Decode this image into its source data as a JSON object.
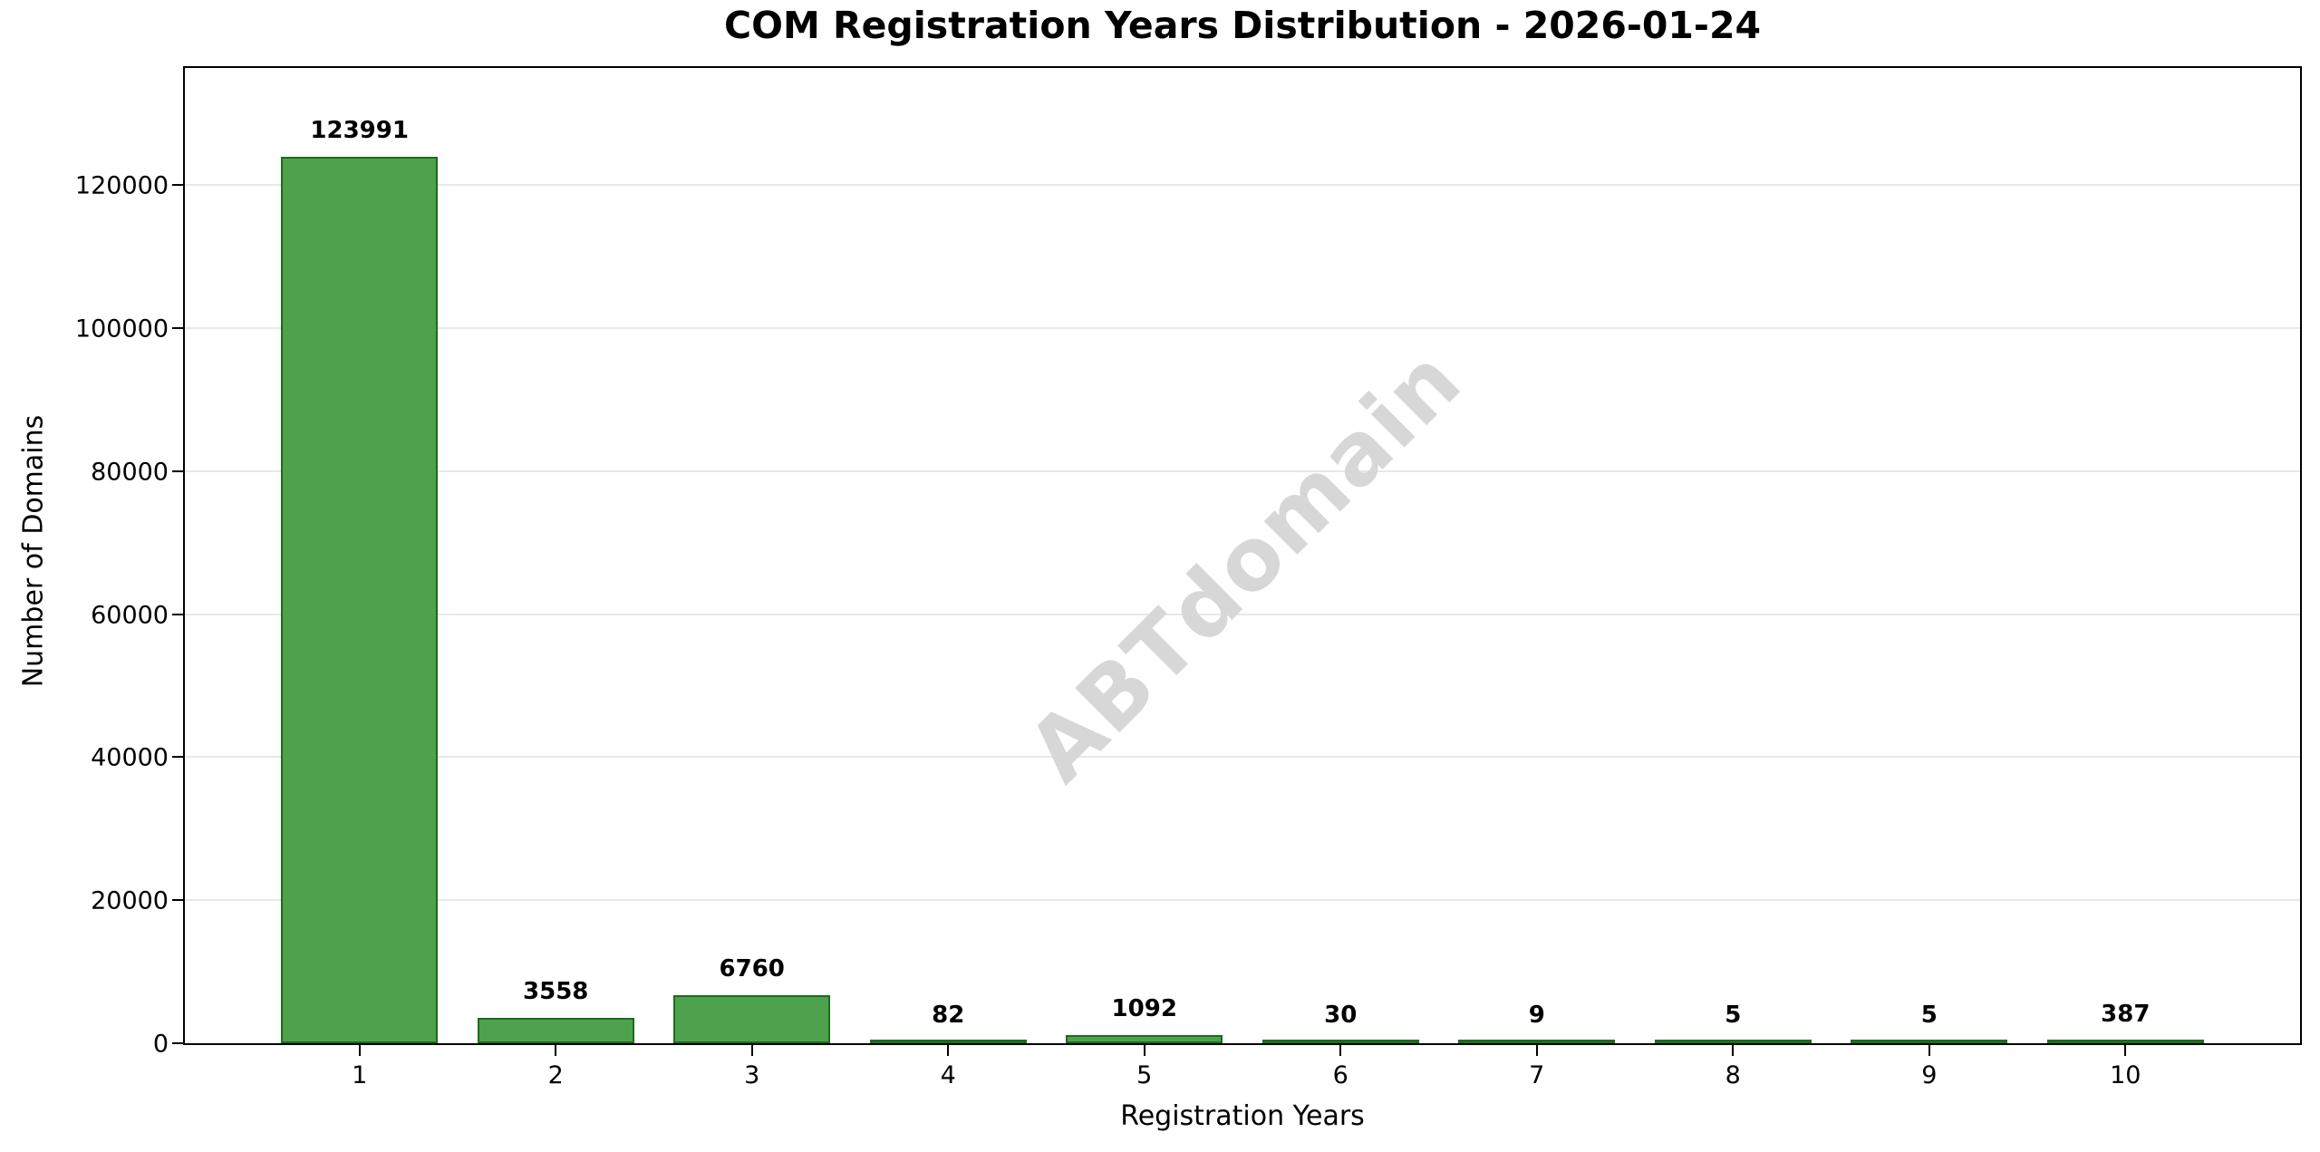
{
  "watermark": "ABTdomain",
  "chart_data": {
    "type": "bar",
    "title": "COM Registration Years Distribution - 2026-01-24",
    "xlabel": "Registration Years",
    "ylabel": "Number of Domains",
    "categories": [
      "1",
      "2",
      "3",
      "4",
      "5",
      "6",
      "7",
      "8",
      "9",
      "10"
    ],
    "values": [
      123991,
      3558,
      6760,
      82,
      1092,
      30,
      9,
      5,
      5,
      387
    ],
    "bar_value_labels": [
      "123991",
      "3558",
      "6760",
      "82",
      "1092",
      "30",
      "9",
      "5",
      "5",
      "387"
    ],
    "yticks": [
      0,
      20000,
      40000,
      60000,
      80000,
      100000,
      120000
    ],
    "ytick_labels": [
      "0",
      "20000",
      "40000",
      "60000",
      "80000",
      "100000",
      "120000"
    ],
    "ylim": [
      0,
      136390
    ],
    "xlim": [
      0.11,
      10.89
    ],
    "bar_width_units": 0.8,
    "grid": "horizontal",
    "legend": "none",
    "colors": {
      "bar_fill": "#4ea24e",
      "bar_edge": "#1e6b1e",
      "grid_line": "#e8e8e8",
      "axis": "#000000",
      "text": "#000000",
      "watermark": "#d7d7d7"
    }
  }
}
